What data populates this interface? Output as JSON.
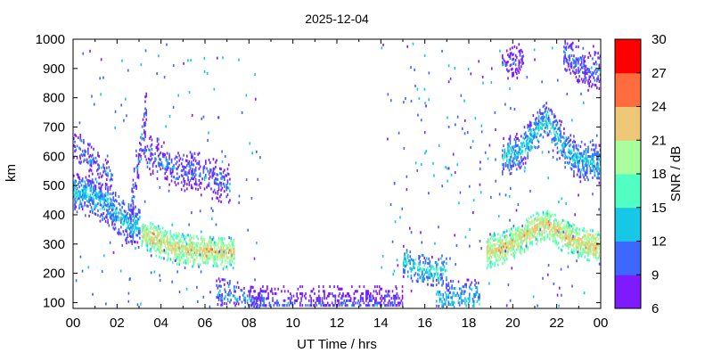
{
  "chart_data": {
    "type": "heatmap",
    "title": "2025-12-04",
    "xlabel": "UT Time / hrs",
    "ylabel": "km",
    "xlim": [
      0,
      24
    ],
    "ylim": [
      80,
      1000
    ],
    "x_ticks": [
      "00",
      "02",
      "04",
      "06",
      "08",
      "10",
      "12",
      "14",
      "16",
      "18",
      "20",
      "22",
      "00"
    ],
    "x_tick_values": [
      0,
      2,
      4,
      6,
      8,
      10,
      12,
      14,
      16,
      18,
      20,
      22,
      24
    ],
    "y_ticks": [
      "100",
      "200",
      "300",
      "400",
      "500",
      "600",
      "700",
      "800",
      "900",
      "1000"
    ],
    "y_tick_values": [
      100,
      200,
      300,
      400,
      500,
      600,
      700,
      800,
      900,
      1000
    ],
    "colorbar": {
      "label": "SNR / dB",
      "range": [
        6,
        30
      ],
      "ticks": [
        "6",
        "9",
        "12",
        "15",
        "18",
        "21",
        "24",
        "27",
        "30"
      ],
      "tick_values": [
        6,
        9,
        12,
        15,
        18,
        21,
        24,
        27,
        30
      ],
      "colors": [
        "#7f1aff",
        "#3d67ff",
        "#16c8e6",
        "#52ffc2",
        "#a8ff9c",
        "#eec777",
        "#ff6c3d",
        "#ff0000"
      ]
    },
    "grid": false,
    "features": [
      {
        "t_start": 0.0,
        "t_end": 3.0,
        "range": [
          [
            0.0,
            480
          ],
          [
            0.8,
            460
          ],
          [
            1.6,
            430
          ],
          [
            2.2,
            380
          ],
          [
            2.6,
            360
          ],
          [
            3.0,
            355
          ]
        ],
        "snr_mean": 14,
        "density": 0.7
      },
      {
        "t_start": 0.0,
        "t_end": 1.8,
        "range": [
          [
            0.0,
            640
          ],
          [
            0.6,
            600
          ],
          [
            1.2,
            560
          ],
          [
            1.8,
            520
          ]
        ],
        "snr_mean": 11,
        "density": 0.35
      },
      {
        "t_start": 2.6,
        "t_end": 3.3,
        "range": [
          [
            2.6,
            420
          ],
          [
            3.0,
            600
          ],
          [
            3.3,
            760
          ]
        ],
        "snr_mean": 11,
        "density": 0.5
      },
      {
        "t_start": 3.1,
        "t_end": 7.3,
        "range": [
          [
            3.1,
            330
          ],
          [
            3.8,
            310
          ],
          [
            4.6,
            285
          ],
          [
            5.4,
            275
          ],
          [
            6.2,
            270
          ],
          [
            7.0,
            265
          ],
          [
            7.3,
            270
          ]
        ],
        "snr_mean": 22,
        "density": 0.85
      },
      {
        "t_start": 3.2,
        "t_end": 7.1,
        "range": [
          [
            3.2,
            620
          ],
          [
            4.0,
            580
          ],
          [
            5.0,
            550
          ],
          [
            6.0,
            530
          ],
          [
            7.1,
            500
          ]
        ],
        "snr_mean": 11,
        "density": 0.4
      },
      {
        "t_start": 6.5,
        "t_end": 8.8,
        "range": [
          [
            6.5,
            130
          ],
          [
            7.5,
            115
          ],
          [
            8.8,
            100
          ]
        ],
        "snr_mean": 12,
        "density": 0.45
      },
      {
        "t_start": 8.0,
        "t_end": 15.0,
        "range": [
          [
            8.0,
            85
          ],
          [
            15.0,
            85
          ]
        ],
        "snr_mean": 10,
        "density": 0.45
      },
      {
        "t_start": 15.0,
        "t_end": 17.0,
        "range": [
          [
            15.0,
            240
          ],
          [
            15.8,
            210
          ],
          [
            16.5,
            200
          ],
          [
            17.0,
            215
          ]
        ],
        "snr_mean": 15,
        "density": 0.5
      },
      {
        "t_start": 16.5,
        "t_end": 18.5,
        "range": [
          [
            16.5,
            115
          ],
          [
            17.5,
            110
          ],
          [
            18.5,
            105
          ]
        ],
        "snr_mean": 14,
        "density": 0.45
      },
      {
        "t_start": 18.8,
        "t_end": 24.0,
        "range": [
          [
            18.8,
            270
          ],
          [
            19.5,
            285
          ],
          [
            20.2,
            310
          ],
          [
            21.0,
            350
          ],
          [
            21.5,
            370
          ],
          [
            22.2,
            330
          ],
          [
            23.0,
            305
          ],
          [
            24.0,
            285
          ]
        ],
        "snr_mean": 22,
        "density": 0.9
      },
      {
        "t_start": 19.5,
        "t_end": 24.0,
        "range": [
          [
            19.5,
            590
          ],
          [
            20.3,
            610
          ],
          [
            21.0,
            680
          ],
          [
            21.5,
            720
          ],
          [
            22.2,
            640
          ],
          [
            23.0,
            580
          ],
          [
            24.0,
            575
          ]
        ],
        "snr_mean": 14,
        "density": 0.6
      },
      {
        "t_start": 19.5,
        "t_end": 20.5,
        "range": [
          [
            19.5,
            900
          ],
          [
            20.5,
            940
          ]
        ],
        "snr_mean": 10,
        "density": 0.4
      },
      {
        "t_start": 22.3,
        "t_end": 24.0,
        "range": [
          [
            22.3,
            960
          ],
          [
            23.0,
            900
          ],
          [
            24.0,
            880
          ]
        ],
        "snr_mean": 11,
        "density": 0.5
      }
    ]
  }
}
